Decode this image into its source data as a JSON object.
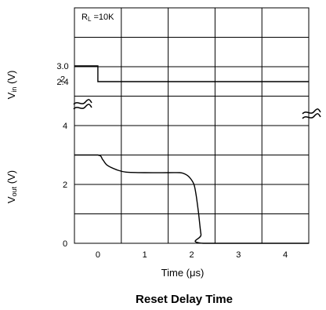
{
  "chart_data": {
    "type": "line",
    "title": "Reset Delay Time",
    "xlabel": "Time  (μs)",
    "x_ticks": [
      "0",
      "1",
      "2",
      "3",
      "4"
    ],
    "xlim": [
      -0.5,
      4.5
    ],
    "annotation": "RL=10K",
    "panels": [
      {
        "ylabel": "Vin (V)",
        "y_tick_labels": [
          "3.0",
          "2.4",
          "2"
        ],
        "ylim": [
          2,
          3.4
        ],
        "series": [
          {
            "x": [
              -0.5,
              0,
              0,
              4.5
            ],
            "y": [
              3.0,
              3.0,
              2.4,
              2.4
            ]
          }
        ]
      },
      {
        "ylabel": "Vout (V)",
        "y_tick_labels": [
          "4",
          "2",
          "0"
        ],
        "ylim": [
          0,
          4
        ],
        "series": [
          {
            "x": [
              -0.5,
              0,
              0.1,
              0.2,
              0.4,
              0.6,
              1.0,
              1.5,
              1.75,
              1.85,
              1.95,
              2.05,
              2.1,
              2.15,
              2.2,
              2.25,
              4.5
            ],
            "y": [
              3.0,
              3.0,
              2.85,
              2.65,
              2.5,
              2.42,
              2.4,
              2.4,
              2.4,
              2.36,
              2.25,
              2.0,
              1.6,
              1.0,
              0.3,
              0.0,
              0.0
            ]
          }
        ]
      }
    ]
  }
}
